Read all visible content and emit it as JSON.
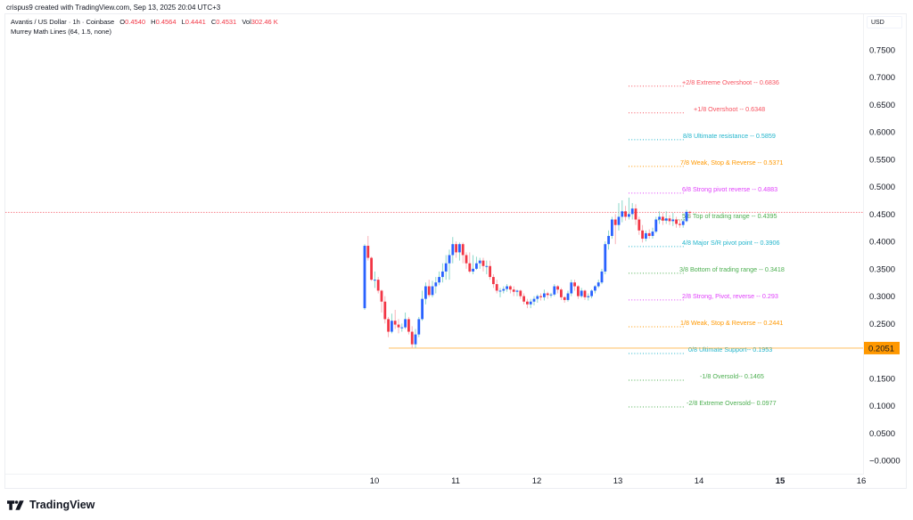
{
  "header": {
    "credit": "crispus9 created with TradingView.com, Sep 13, 2025 20:04 UTC+3"
  },
  "legend": {
    "symbol": "Avantis / US Dollar · 1h · Coinbase",
    "open_label": "O",
    "open": "0.4540",
    "high_label": "H",
    "high": "0.4564",
    "low_label": "L",
    "low": "0.4441",
    "close_label": "C",
    "close": "0.4531",
    "vol_label": "Vol",
    "vol": "302.46 K",
    "indicator": "Murrey Math Lines (64, 1.5, none)"
  },
  "price_scale": {
    "currency": "USD",
    "ticks": [
      "0.7500",
      "0.7000",
      "0.6500",
      "0.6000",
      "0.5500",
      "0.5000",
      "0.4500",
      "0.4000",
      "0.3500",
      "0.3000",
      "0.2500",
      "0.2000",
      "0.1500",
      "0.1000",
      "0.0500",
      "−0.0000"
    ],
    "highlight_label": "0.2051",
    "highlight_color": "#ff9800"
  },
  "time_scale": {
    "ticks": [
      "10",
      "11",
      "12",
      "13",
      "14",
      "15",
      "16"
    ],
    "bold_tick": "15"
  },
  "brand": {
    "name": "TradingView"
  },
  "colors": {
    "up": "#2962ff",
    "down": "#f23645",
    "up_wick": "#7fd3c3",
    "down_wick": "#f7a9b0",
    "last_price_line": "#f23645",
    "horizontal_line": "#ff9800"
  },
  "chart_data": {
    "type": "candlestick",
    "title": "Avantis / US Dollar · 1h · Coinbase",
    "xlabel": "",
    "ylabel": "USD",
    "ylim": [
      0.0,
      0.75
    ],
    "x_ticks": [
      "10",
      "11",
      "12",
      "13",
      "14",
      "15",
      "16"
    ],
    "last_price": 0.4531,
    "horizontal_line": 0.2051,
    "murrey_math_lines": [
      {
        "label": "+2/8 Extreme Overshoot --",
        "value": 0.6836,
        "color": "#f7525f"
      },
      {
        "label": "+1/8 Overshoot --",
        "value": 0.6348,
        "color": "#f7525f"
      },
      {
        "label": "8/8 Ultimate resistance --",
        "value": 0.5859,
        "color": "#22b5cc"
      },
      {
        "label": "7/8 Weak, Stop & Reverse --",
        "value": 0.5371,
        "color": "#ff9800"
      },
      {
        "label": "6/8 Strong pivot reverse --",
        "value": 0.4883,
        "color": "#e040fb"
      },
      {
        "label": "5/8 Top of trading range --",
        "value": 0.4395,
        "color": "#4caf50"
      },
      {
        "label": "4/8 Major S/R pivot point --",
        "value": 0.3906,
        "color": "#22b5cc"
      },
      {
        "label": "3/8 Bottom of trading range --",
        "value": 0.3418,
        "color": "#4caf50"
      },
      {
        "label": "2/8 Strong, Pivot, reverse --",
        "value": 0.293,
        "color": "#e040fb"
      },
      {
        "label": "1/8 Weak, Stop & Reverse --",
        "value": 0.2441,
        "color": "#ff9800"
      },
      {
        "label": "0/8 Ultimate Support--",
        "value": 0.1953,
        "color": "#22b5cc"
      },
      {
        "label": "-1/8 Oversold--",
        "value": 0.1465,
        "color": "#4caf50"
      },
      {
        "label": "-2/8 Extreme Oversold--",
        "value": 0.0977,
        "color": "#4caf50"
      }
    ],
    "candles_ohlc": [
      [
        0.278,
        0.392,
        0.275,
        0.395
      ],
      [
        0.392,
        0.37,
        0.365,
        0.41
      ],
      [
        0.37,
        0.33,
        0.328,
        0.372
      ],
      [
        0.33,
        0.33,
        0.315,
        0.345
      ],
      [
        0.33,
        0.31,
        0.305,
        0.335
      ],
      [
        0.31,
        0.29,
        0.27,
        0.312
      ],
      [
        0.29,
        0.258,
        0.25,
        0.3
      ],
      [
        0.258,
        0.235,
        0.225,
        0.262
      ],
      [
        0.235,
        0.255,
        0.232,
        0.268
      ],
      [
        0.255,
        0.248,
        0.24,
        0.275
      ],
      [
        0.248,
        0.243,
        0.232,
        0.258
      ],
      [
        0.243,
        0.243,
        0.235,
        0.25
      ],
      [
        0.243,
        0.258,
        0.24,
        0.27
      ],
      [
        0.258,
        0.235,
        0.23,
        0.262
      ],
      [
        0.235,
        0.212,
        0.205,
        0.245
      ],
      [
        0.212,
        0.23,
        0.205,
        0.24
      ],
      [
        0.23,
        0.258,
        0.225,
        0.262
      ],
      [
        0.258,
        0.295,
        0.255,
        0.31
      ],
      [
        0.295,
        0.318,
        0.285,
        0.325
      ],
      [
        0.318,
        0.302,
        0.298,
        0.33
      ],
      [
        0.302,
        0.318,
        0.298,
        0.328
      ],
      [
        0.318,
        0.325,
        0.305,
        0.335
      ],
      [
        0.325,
        0.335,
        0.32,
        0.345
      ],
      [
        0.335,
        0.345,
        0.325,
        0.36
      ],
      [
        0.345,
        0.36,
        0.33,
        0.375
      ],
      [
        0.36,
        0.375,
        0.33,
        0.385
      ],
      [
        0.375,
        0.395,
        0.36,
        0.408
      ],
      [
        0.395,
        0.38,
        0.37,
        0.4
      ],
      [
        0.38,
        0.395,
        0.365,
        0.398
      ],
      [
        0.395,
        0.375,
        0.36,
        0.398
      ],
      [
        0.375,
        0.36,
        0.35,
        0.38
      ],
      [
        0.36,
        0.345,
        0.342,
        0.38
      ],
      [
        0.345,
        0.35,
        0.34,
        0.375
      ],
      [
        0.35,
        0.36,
        0.348,
        0.372
      ],
      [
        0.36,
        0.365,
        0.35,
        0.37
      ],
      [
        0.365,
        0.355,
        0.345,
        0.37
      ],
      [
        0.355,
        0.355,
        0.34,
        0.365
      ],
      [
        0.355,
        0.335,
        0.33,
        0.365
      ],
      [
        0.335,
        0.322,
        0.315,
        0.34
      ],
      [
        0.322,
        0.31,
        0.305,
        0.33
      ],
      [
        0.31,
        0.31,
        0.298,
        0.315
      ],
      [
        0.31,
        0.313,
        0.305,
        0.318
      ],
      [
        0.313,
        0.318,
        0.308,
        0.322
      ],
      [
        0.318,
        0.312,
        0.305,
        0.32
      ],
      [
        0.312,
        0.308,
        0.3,
        0.318
      ],
      [
        0.308,
        0.31,
        0.3,
        0.312
      ],
      [
        0.31,
        0.3,
        0.295,
        0.312
      ],
      [
        0.3,
        0.29,
        0.285,
        0.305
      ],
      [
        0.29,
        0.285,
        0.278,
        0.295
      ],
      [
        0.285,
        0.29,
        0.278,
        0.295
      ],
      [
        0.29,
        0.295,
        0.283,
        0.3
      ],
      [
        0.295,
        0.3,
        0.288,
        0.303
      ],
      [
        0.3,
        0.298,
        0.292,
        0.305
      ],
      [
        0.298,
        0.305,
        0.292,
        0.312
      ],
      [
        0.305,
        0.302,
        0.295,
        0.308
      ],
      [
        0.302,
        0.303,
        0.297,
        0.306
      ],
      [
        0.303,
        0.318,
        0.3,
        0.322
      ],
      [
        0.318,
        0.312,
        0.305,
        0.32
      ],
      [
        0.312,
        0.298,
        0.293,
        0.315
      ],
      [
        0.298,
        0.293,
        0.288,
        0.3
      ],
      [
        0.293,
        0.305,
        0.29,
        0.31
      ],
      [
        0.305,
        0.325,
        0.3,
        0.33
      ],
      [
        0.325,
        0.318,
        0.31,
        0.33
      ],
      [
        0.318,
        0.3,
        0.295,
        0.32
      ],
      [
        0.3,
        0.31,
        0.297,
        0.315
      ],
      [
        0.31,
        0.298,
        0.293,
        0.312
      ],
      [
        0.298,
        0.3,
        0.292,
        0.305
      ],
      [
        0.3,
        0.31,
        0.296,
        0.312
      ],
      [
        0.31,
        0.318,
        0.305,
        0.32
      ],
      [
        0.318,
        0.325,
        0.315,
        0.33
      ],
      [
        0.325,
        0.345,
        0.322,
        0.35
      ],
      [
        0.345,
        0.395,
        0.34,
        0.4
      ],
      [
        0.395,
        0.41,
        0.385,
        0.42
      ],
      [
        0.41,
        0.44,
        0.405,
        0.445
      ],
      [
        0.44,
        0.43,
        0.395,
        0.45
      ],
      [
        0.43,
        0.445,
        0.42,
        0.47
      ],
      [
        0.445,
        0.455,
        0.435,
        0.475
      ],
      [
        0.455,
        0.445,
        0.438,
        0.465
      ],
      [
        0.445,
        0.45,
        0.44,
        0.48
      ],
      [
        0.45,
        0.46,
        0.44,
        0.47
      ],
      [
        0.46,
        0.44,
        0.43,
        0.468
      ],
      [
        0.44,
        0.42,
        0.412,
        0.445
      ],
      [
        0.42,
        0.405,
        0.398,
        0.43
      ],
      [
        0.405,
        0.415,
        0.4,
        0.42
      ],
      [
        0.415,
        0.41,
        0.405,
        0.422
      ],
      [
        0.41,
        0.418,
        0.405,
        0.425
      ],
      [
        0.418,
        0.44,
        0.415,
        0.445
      ],
      [
        0.44,
        0.445,
        0.432,
        0.455
      ],
      [
        0.445,
        0.438,
        0.43,
        0.452
      ],
      [
        0.438,
        0.442,
        0.432,
        0.455
      ],
      [
        0.442,
        0.437,
        0.43,
        0.448
      ],
      [
        0.437,
        0.44,
        0.428,
        0.452
      ],
      [
        0.44,
        0.432,
        0.425,
        0.445
      ],
      [
        0.432,
        0.43,
        0.425,
        0.44
      ],
      [
        0.43,
        0.437,
        0.425,
        0.442
      ],
      [
        0.437,
        0.454,
        0.435,
        0.458
      ],
      [
        0.454,
        0.453,
        0.444,
        0.456
      ]
    ]
  }
}
